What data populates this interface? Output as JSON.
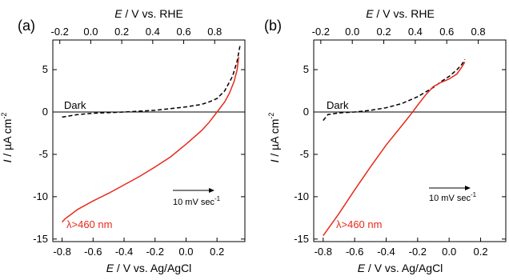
{
  "chart_data": [
    {
      "type": "line",
      "panel_label": "(a)",
      "xlabel_prefix": "E",
      "xlabel": " / V vs. Ag/AgCl",
      "x2label_prefix": "E",
      "x2label": " / V vs. RHE",
      "ylabel_prefix": "I",
      "ylabel_unit": " / µA cm",
      "ylabel_exp": "-2",
      "xlim": [
        -0.86,
        0.38
      ],
      "ylim": [
        -15.3,
        8.5
      ],
      "xticks": [
        "-0.8",
        "-0.6",
        "-0.4",
        "-0.2",
        "0.0",
        "0.2"
      ],
      "xtick_values": [
        -0.8,
        -0.6,
        -0.4,
        -0.2,
        0.0,
        0.2
      ],
      "x2ticks": [
        "-0.2",
        "0.0",
        "0.2",
        "0.4",
        "0.6",
        "0.8"
      ],
      "x2tick_values": [
        -0.2,
        0.0,
        0.2,
        0.4,
        0.6,
        0.8
      ],
      "x2_offset": 0.615,
      "yticks": [
        "-15",
        "-10",
        "-5",
        "0",
        "5"
      ],
      "ytick_values": [
        -15,
        -10,
        -5,
        0,
        5
      ],
      "zero_line": true,
      "series": [
        {
          "name": "Dark",
          "color": "#000000",
          "dash": "dashed",
          "x": [
            -0.8,
            -0.7,
            -0.6,
            -0.4,
            -0.2,
            -0.1,
            0.0,
            0.1,
            0.15,
            0.2,
            0.25,
            0.3,
            0.33,
            0.35
          ],
          "y": [
            -0.6,
            -0.3,
            -0.15,
            0.0,
            0.2,
            0.4,
            0.6,
            0.9,
            1.2,
            1.6,
            2.5,
            4.2,
            6.0,
            8.0
          ]
        },
        {
          "name": "λ>460 nm",
          "color": "#e8291c",
          "dash": "solid",
          "x": [
            -0.8,
            -0.78,
            -0.7,
            -0.6,
            -0.5,
            -0.4,
            -0.3,
            -0.2,
            -0.1,
            0.0,
            0.1,
            0.15,
            0.2,
            0.25,
            0.28,
            0.31,
            0.33,
            0.34
          ],
          "y": [
            -13.0,
            -12.6,
            -11.5,
            -10.5,
            -9.6,
            -8.6,
            -7.6,
            -6.5,
            -5.3,
            -3.8,
            -2.2,
            -1.2,
            0.0,
            1.2,
            2.2,
            3.6,
            5.0,
            6.5
          ]
        }
      ],
      "annotation": {
        "text": "10 mV sec",
        "exp": "-1"
      }
    },
    {
      "type": "line",
      "panel_label": "(b)",
      "xlabel_prefix": "E",
      "xlabel": " / V vs. Ag/AgCl",
      "x2label_prefix": "E",
      "x2label": " / V vs. RHE",
      "ylabel_prefix": "I",
      "ylabel_unit": " / µA cm",
      "ylabel_exp": "-2",
      "xlim": [
        -0.86,
        0.36
      ],
      "ylim": [
        -15.3,
        8.5
      ],
      "xticks": [
        "-0.8",
        "-0.6",
        "-0.4",
        "-0.2",
        "0.0",
        "0.2"
      ],
      "xtick_values": [
        -0.8,
        -0.6,
        -0.4,
        -0.2,
        0.0,
        0.2
      ],
      "x2ticks": [
        "-0.2",
        "0.0",
        "0.2",
        "0.4",
        "0.6",
        "0.8"
      ],
      "x2tick_values": [
        -0.2,
        0.0,
        0.2,
        0.4,
        0.6,
        0.8
      ],
      "x2_offset": 0.615,
      "yticks": [
        "-15",
        "-10",
        "-5",
        "0",
        "5"
      ],
      "ytick_values": [
        -15,
        -10,
        -5,
        0,
        5
      ],
      "zero_line": true,
      "series": [
        {
          "name": "Dark",
          "color": "#000000",
          "dash": "dashed",
          "x": [
            -0.8,
            -0.77,
            -0.7,
            -0.6,
            -0.5,
            -0.4,
            -0.3,
            -0.2,
            -0.1,
            -0.05,
            0.0,
            0.05,
            0.08,
            0.1
          ],
          "y": [
            -1.0,
            -0.3,
            -0.1,
            0.0,
            0.2,
            0.5,
            1.0,
            1.8,
            2.9,
            3.6,
            4.2,
            5.0,
            5.6,
            6.2
          ]
        },
        {
          "name": "λ>460 nm",
          "color": "#e8291c",
          "dash": "solid",
          "x": [
            -0.8,
            -0.7,
            -0.6,
            -0.5,
            -0.4,
            -0.3,
            -0.24,
            -0.2,
            -0.15,
            -0.1,
            -0.05,
            0.0,
            0.05,
            0.08,
            0.1
          ],
          "y": [
            -14.6,
            -12.0,
            -9.2,
            -6.5,
            -3.9,
            -1.6,
            -0.2,
            0.8,
            2.0,
            3.0,
            3.5,
            3.9,
            4.5,
            5.3,
            5.9
          ]
        }
      ],
      "annotation": {
        "text": "10 mV sec",
        "exp": "-1"
      }
    }
  ]
}
